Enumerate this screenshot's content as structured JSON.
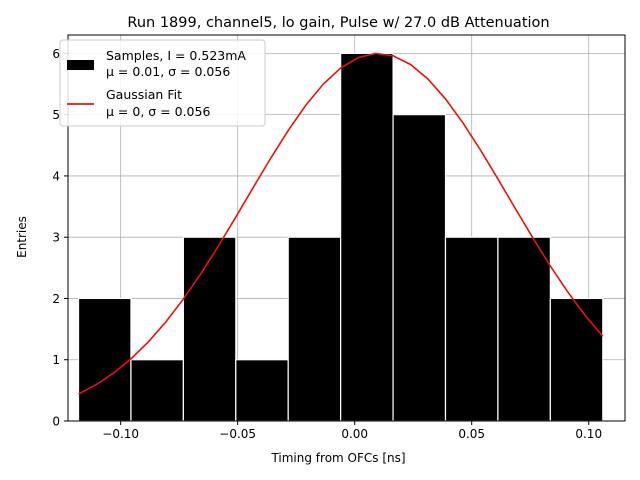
{
  "chart_data": {
    "type": "bar",
    "title": "Run 1899, channel5, lo gain, Pulse w/ 27.0 dB Attenuation",
    "xlabel": "Timing from OFCs [ns]",
    "ylabel": "Entries",
    "xlim": [
      -0.1225,
      0.1155
    ],
    "ylim": [
      0,
      6.3
    ],
    "xticks": [
      -0.1,
      -0.05,
      0.0,
      0.05,
      0.1
    ],
    "xtick_labels": [
      "−0.10",
      "−0.05",
      "0.00",
      "0.05",
      "0.10"
    ],
    "yticks": [
      0,
      1,
      2,
      3,
      4,
      5,
      6
    ],
    "ytick_labels": [
      "0",
      "1",
      "2",
      "3",
      "4",
      "5",
      "6"
    ],
    "grid": true,
    "legend_position": "top-left",
    "histogram": {
      "name": "Samples, I = 0.523mA",
      "stats_label": "μ = 0.01, σ = 0.056",
      "color": "#000000",
      "bin_edges": [
        -0.118,
        -0.0956,
        -0.0732,
        -0.0508,
        -0.0284,
        -0.006,
        0.0164,
        0.0388,
        0.0612,
        0.0836,
        0.106
      ],
      "counts": [
        2,
        1,
        3,
        1,
        3,
        6,
        5,
        3,
        3,
        2
      ]
    },
    "fit": {
      "name": "Gaussian Fit",
      "stats_label": "μ = 0, σ = 0.056",
      "color": "#e8120c",
      "mean": 0.01,
      "sigma": 0.056,
      "amplitude": 6.0,
      "x_range": [
        -0.118,
        0.106
      ]
    }
  }
}
